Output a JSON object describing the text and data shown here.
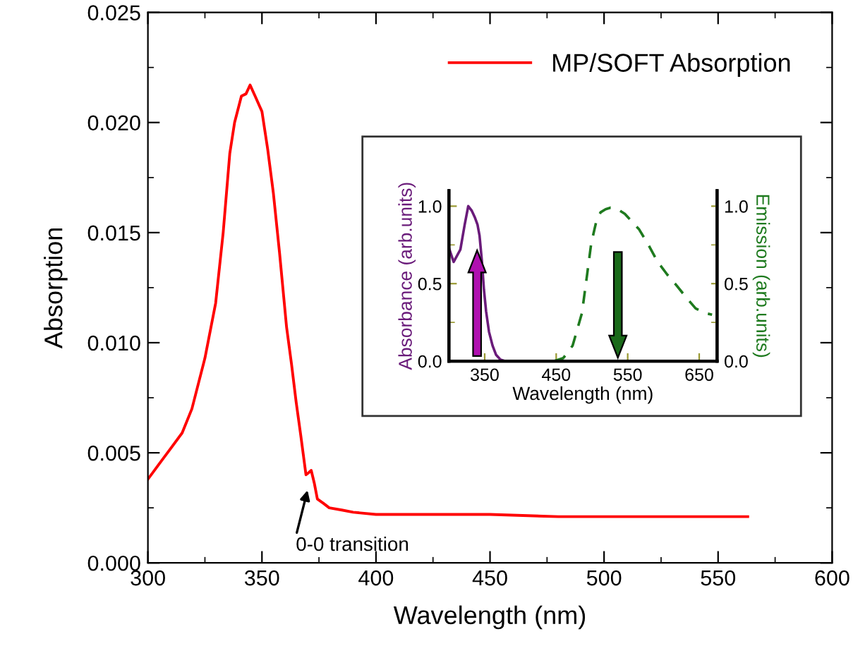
{
  "chart_data": [
    {
      "type": "line",
      "xlabel": "Wavelength (nm)",
      "ylabel": "Absorption",
      "x": [
        300,
        305,
        310,
        315,
        319.3,
        325,
        329.7,
        333,
        335.9,
        338,
        341,
        343,
        344.8,
        347,
        350,
        352.5,
        355,
        357.7,
        360.8,
        363,
        365,
        367,
        369.3,
        370.5,
        371.6,
        373,
        374.3,
        377,
        379.5,
        385,
        390,
        400,
        420,
        450,
        480,
        500,
        530,
        563
      ],
      "series": [
        {
          "name": "MP/SOFT Absorption",
          "color": "#ff0000",
          "values": [
            0.0038,
            0.0045,
            0.0052,
            0.0059,
            0.007,
            0.0093,
            0.0118,
            0.015,
            0.0186,
            0.02,
            0.0212,
            0.0213,
            0.0217,
            0.0212,
            0.0205,
            0.0188,
            0.0168,
            0.0141,
            0.0107,
            0.009,
            0.0073,
            0.0058,
            0.004,
            0.0041,
            0.0042,
            0.0036,
            0.0029,
            0.0027,
            0.0025,
            0.0024,
            0.0023,
            0.0022,
            0.0022,
            0.0022,
            0.0021,
            0.0021,
            0.0021,
            0.0021
          ]
        }
      ],
      "xlim": [
        300,
        600
      ],
      "ylim": [
        0,
        0.025
      ],
      "xticks": [
        300,
        350,
        400,
        450,
        500,
        550,
        600
      ],
      "yticks": [
        {
          "value": 0,
          "label": "0.000"
        },
        {
          "value": 0.005,
          "label": "0.005"
        },
        {
          "value": 0.01,
          "label": "0.010"
        },
        {
          "value": 0.015,
          "label": "0.015"
        },
        {
          "value": 0.02,
          "label": "0.020"
        },
        {
          "value": 0.025,
          "label": "0.025"
        }
      ],
      "legend": "top right",
      "grid": false,
      "annotations": [
        {
          "text": "0-0 transition",
          "x": 370,
          "y": 0.0033
        }
      ]
    },
    {
      "type": "line",
      "xlabel": "Wavelength (nm)",
      "ylabel": "Absorbance (arb.units)",
      "y2label": "Emission (arb.units)",
      "series": [
        {
          "color": "#6a1b7a",
          "line_style": "solid",
          "x": [
            300,
            306.6,
            316,
            322,
            327,
            332,
            336,
            340,
            342.8,
            346,
            349,
            352,
            356,
            361,
            366,
            372,
            379
          ],
          "values": [
            0.73,
            0.64,
            0.72,
            0.88,
            1.0,
            0.97,
            0.93,
            0.88,
            0.81,
            0.65,
            0.46,
            0.32,
            0.19,
            0.1,
            0.04,
            0.01,
            0
          ]
        },
        {
          "color": "#1e7a1e",
          "line_style": "dashed",
          "axis": "y2",
          "x": [
            447,
            460,
            473,
            486,
            493,
            499,
            506,
            512,
            519,
            526,
            536,
            546,
            556,
            566,
            579,
            592,
            605,
            618,
            632,
            645,
            658,
            668
          ],
          "values": [
            0,
            0.02,
            0.1,
            0.31,
            0.55,
            0.76,
            0.9,
            0.96,
            0.98,
            0.99,
            0.98,
            0.95,
            0.9,
            0.85,
            0.75,
            0.64,
            0.56,
            0.49,
            0.41,
            0.34,
            0.31,
            0.3
          ]
        }
      ],
      "xlim": [
        300,
        675
      ],
      "ylim": [
        0,
        1.1
      ],
      "y2lim": [
        0,
        1.1
      ],
      "xticks": [
        350,
        450,
        550,
        650
      ],
      "yticks": [
        {
          "value": 0,
          "label": "0.0"
        },
        {
          "value": 0.5,
          "label": "0.5"
        },
        {
          "value": 1,
          "label": "1.0"
        }
      ],
      "y2ticks": [
        {
          "value": 0,
          "label": "0.0"
        },
        {
          "value": 0.5,
          "label": "0.5"
        },
        {
          "value": 1,
          "label": "1.0"
        }
      ],
      "grid": false
    }
  ]
}
